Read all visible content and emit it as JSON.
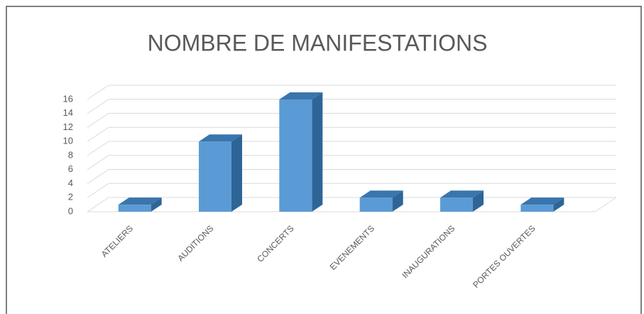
{
  "chart_data": {
    "type": "bar3d",
    "title": "NOMBRE DE MANIFESTATIONS",
    "categories": [
      "ATELIERS",
      "AUDITIONS",
      "CONCERTS",
      "EVENEMENTS",
      "INAUGURATIONS",
      "PORTES OUVERTES"
    ],
    "values": [
      1,
      10,
      16,
      2,
      2,
      1
    ],
    "color": "#5b9bd5",
    "ylim": [
      0,
      16
    ],
    "yticks": [
      0,
      2,
      4,
      6,
      8,
      10,
      12,
      14,
      16
    ],
    "grid": true
  }
}
